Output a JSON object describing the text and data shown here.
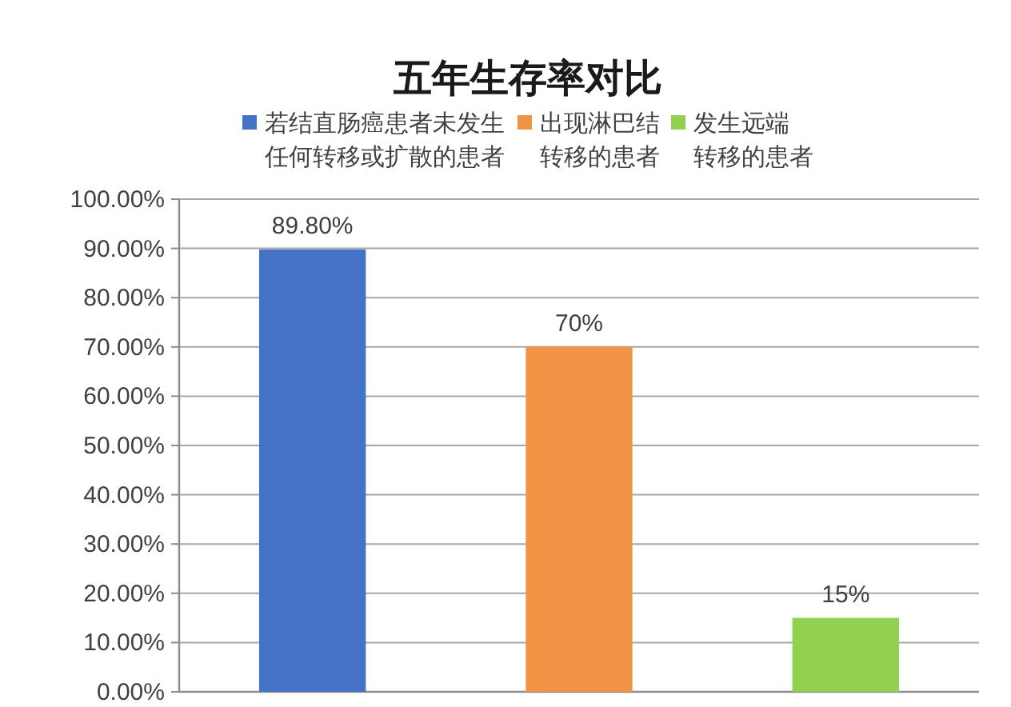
{
  "chart_data": {
    "type": "bar",
    "title": "五年生存率对比",
    "categories": [
      null,
      null,
      null
    ],
    "series": [
      {
        "name": "若结直肠癌患者未发生任何转移或扩散的患者",
        "color": "#4472c4",
        "values": [
          89.8,
          null,
          null
        ],
        "value_labels": [
          "89.80%",
          null,
          null
        ]
      },
      {
        "name": "出现淋巴结转移的患者",
        "color": "#f29446",
        "values": [
          null,
          70,
          null
        ],
        "value_labels": [
          null,
          "70%",
          null
        ]
      },
      {
        "name": "发生远端转移的患者",
        "color": "#92d050",
        "values": [
          null,
          null,
          15
        ],
        "value_labels": [
          null,
          null,
          "15%"
        ]
      }
    ],
    "ylim": [
      0,
      100
    ],
    "yticks": [
      {
        "value": 0,
        "label": "0.00%"
      },
      {
        "value": 10,
        "label": "10.00%"
      },
      {
        "value": 20,
        "label": "20.00%"
      },
      {
        "value": 30,
        "label": "30.00%"
      },
      {
        "value": 40,
        "label": "40.00%"
      },
      {
        "value": 50,
        "label": "50.00%"
      },
      {
        "value": 60,
        "label": "60.00%"
      },
      {
        "value": 70,
        "label": "70.00%"
      },
      {
        "value": 80,
        "label": "80.00%"
      },
      {
        "value": 90,
        "label": "90.00%"
      },
      {
        "value": 100,
        "label": "100.00%"
      }
    ],
    "grid": "y",
    "legend": "top"
  }
}
